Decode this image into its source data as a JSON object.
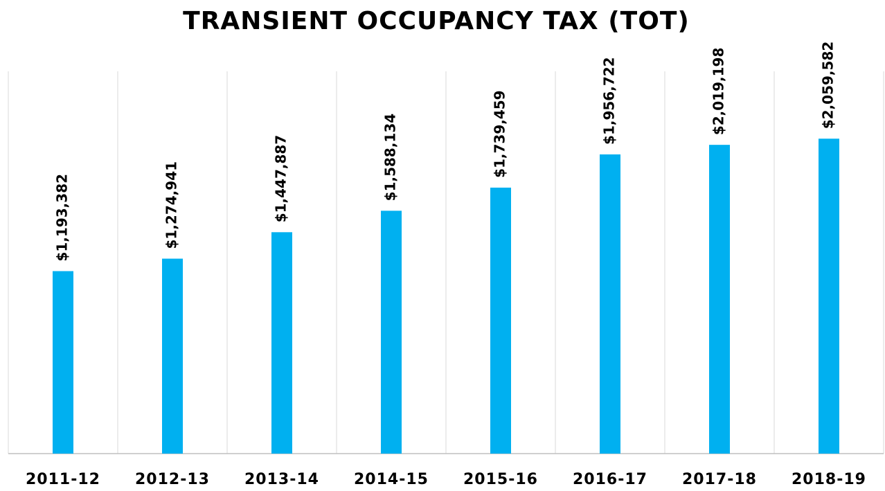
{
  "chart_data": {
    "type": "bar",
    "title": "TRANSIENT OCCUPANCY TAX (TOT)",
    "categories": [
      "2011-12",
      "2012-13",
      "2013-14",
      "2014-15",
      "2015-16",
      "2016-17",
      "2017-18",
      "2018-19"
    ],
    "values": [
      1193382,
      1274941,
      1447887,
      1588134,
      1739459,
      1956722,
      2019198,
      2059582
    ],
    "value_labels": [
      "$1,193,382",
      "$1,274,941",
      "$1,447,887",
      "$1,588,134",
      "$1,739,459",
      "$1,956,722",
      "$2,019,198",
      "$2,059,582"
    ],
    "color": "#00b0f0",
    "ylim": [
      0,
      2500000
    ]
  }
}
